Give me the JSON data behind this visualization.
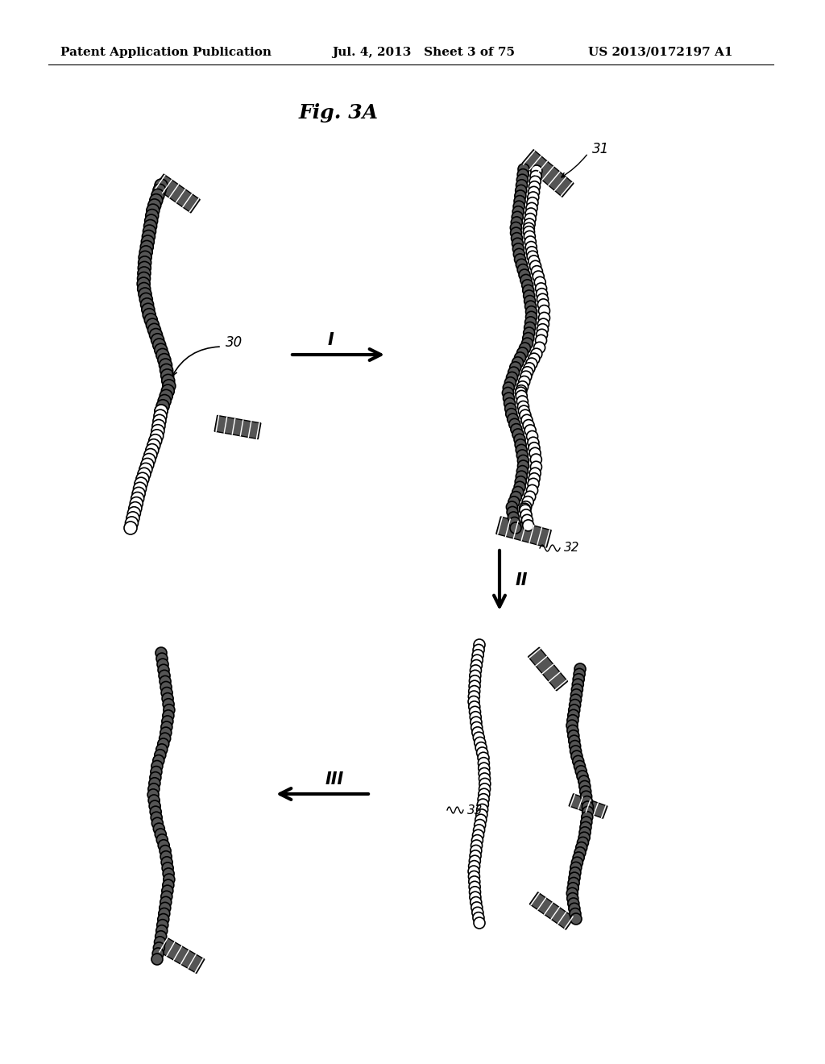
{
  "title": "Fig. 3A",
  "header_left": "Patent Application Publication",
  "header_mid": "Jul. 4, 2013   Sheet 3 of 75",
  "header_right": "US 2013/0172197 A1",
  "background_color": "#ffffff",
  "text_color": "#000000",
  "label_30": "30",
  "label_31": "31",
  "label_32": "32",
  "label_33": "33",
  "step_I": "I",
  "step_II": "II",
  "step_III": "III"
}
